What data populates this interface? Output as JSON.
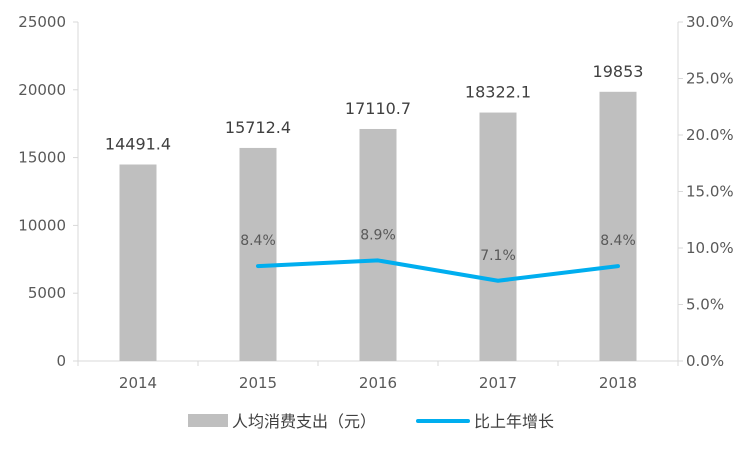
{
  "chart_data": {
    "type": "bar",
    "categories": [
      "2014",
      "2015",
      "2016",
      "2017",
      "2018"
    ],
    "series": [
      {
        "name": "人均消费支出（元）",
        "type": "bar",
        "axis": "left",
        "values": [
          14491.4,
          15712.4,
          17110.7,
          18322.1,
          19853
        ],
        "labels": [
          "14491.4",
          "15712.4",
          "17110.7",
          "18322.1",
          "19853"
        ]
      },
      {
        "name": "比上年增长",
        "type": "line",
        "axis": "right",
        "values": [
          null,
          8.4,
          8.9,
          7.1,
          8.4
        ],
        "labels": [
          "",
          "8.4%",
          "8.9%",
          "7.1%",
          "8.4%"
        ]
      }
    ],
    "y_left": {
      "ylim": [
        0,
        25000
      ],
      "ticks": [
        "0",
        "5000",
        "10000",
        "15000",
        "20000",
        "25000"
      ]
    },
    "y_right": {
      "ylim": [
        0,
        30
      ],
      "ticks": [
        "0.0%",
        "5.0%",
        "10.0%",
        "15.0%",
        "20.0%",
        "25.0%",
        "30.0%"
      ]
    },
    "grid": false,
    "legend": "bottom",
    "colors": {
      "bar": "#bfbfbf",
      "line": "#00aeef",
      "axis": "#d9d9d9"
    }
  }
}
